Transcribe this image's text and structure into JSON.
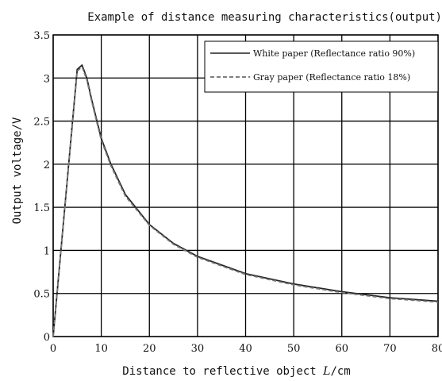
{
  "chart_data": {
    "type": "line",
    "title": "Example of distance measuring characteristics(output)",
    "xlabel_prefix": "Distance to reflective object ",
    "xlabel_var": "L",
    "xlabel_unit": "/cm",
    "ylabel": "Output voltage/V",
    "xlim": [
      0,
      80
    ],
    "ylim": [
      0,
      3.5
    ],
    "x_ticks": [
      0,
      10,
      20,
      30,
      40,
      50,
      60,
      70,
      80
    ],
    "y_ticks": [
      0,
      0.5,
      1,
      1.5,
      2,
      2.5,
      3,
      3.5
    ],
    "x_tick_labels": [
      "0",
      "10",
      "20",
      "30",
      "40",
      "50",
      "60",
      "70",
      "80"
    ],
    "y_tick_labels": [
      "0",
      "0.5",
      "1",
      "1.5",
      "2",
      "2.5",
      "3",
      "3.5"
    ],
    "grid": true,
    "legend_position": "top-right",
    "series": [
      {
        "name": "White paper (Reflectance ratio 90%)",
        "color": "#222222",
        "dash": "solid",
        "x": [
          0,
          5,
          6,
          7,
          8,
          10,
          12,
          15,
          20,
          25,
          30,
          35,
          40,
          50,
          60,
          70,
          80
        ],
        "y": [
          0,
          3.1,
          3.15,
          3.0,
          2.75,
          2.3,
          2.0,
          1.65,
          1.3,
          1.08,
          0.93,
          0.83,
          0.73,
          0.61,
          0.52,
          0.45,
          0.41
        ]
      },
      {
        "name": "Gray paper (Reflectance ratio 18%)",
        "color": "#777777",
        "dash": "dashed",
        "x": [
          0,
          5,
          6,
          7,
          8,
          10,
          12,
          15,
          20,
          25,
          30,
          35,
          40,
          50,
          60,
          70,
          80
        ],
        "y": [
          0,
          3.08,
          3.13,
          2.98,
          2.73,
          2.28,
          1.98,
          1.63,
          1.29,
          1.07,
          0.92,
          0.82,
          0.72,
          0.6,
          0.51,
          0.44,
          0.4
        ]
      }
    ]
  }
}
